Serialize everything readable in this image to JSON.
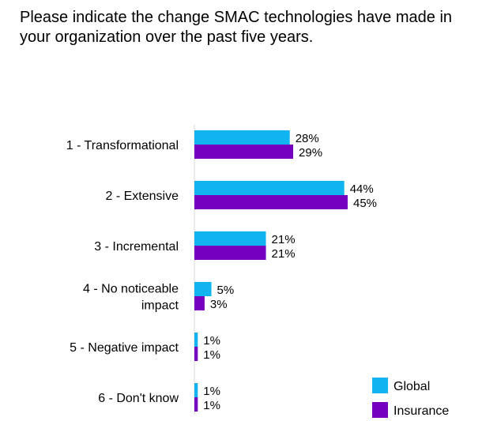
{
  "question": "Please indicate the change SMAC technologies have made in your organization over the past five years.",
  "colors": {
    "Global": "#11b4f0",
    "Insurance": "#7500c0"
  },
  "chart_data": {
    "type": "bar",
    "orientation": "horizontal",
    "title": "Please indicate the change SMAC technologies have made in your organization over the past five years.",
    "categories": [
      [
        "1 - Transformational"
      ],
      [
        "2 - Extensive"
      ],
      [
        "3 - Incremental"
      ],
      [
        "4 - No noticeable",
        "impact"
      ],
      [
        "5 - Negative impact"
      ],
      [
        "6 - Don't know"
      ]
    ],
    "series": [
      {
        "name": "Global",
        "values": [
          28,
          44,
          21,
          5,
          1,
          1
        ]
      },
      {
        "name": "Insurance",
        "values": [
          29,
          45,
          21,
          3,
          1,
          1
        ]
      }
    ],
    "value_suffix": "%",
    "xlim": [
      0,
      45
    ],
    "grid": false,
    "legend": "bottom-right"
  }
}
